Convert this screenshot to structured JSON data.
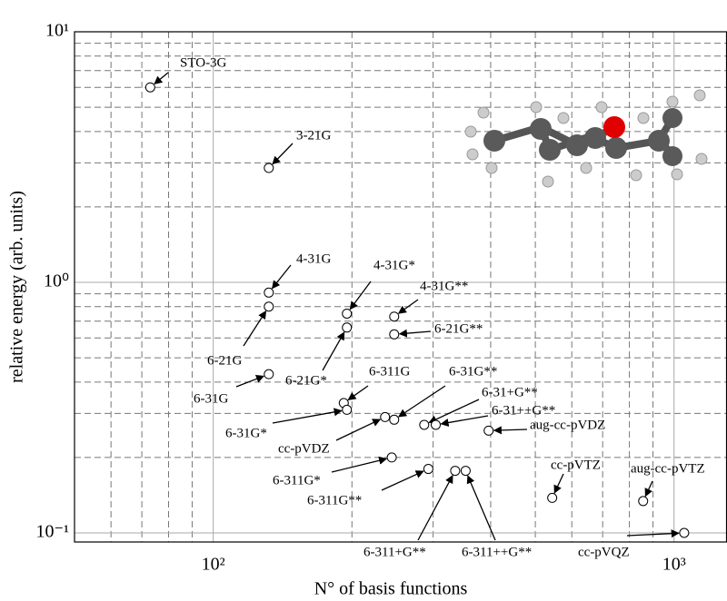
{
  "chart_data": {
    "type": "scatter",
    "xlabel": "N° of basis functions",
    "ylabel": "relative energy (arb. units)",
    "xscale": "log",
    "yscale": "log",
    "grid": true,
    "marker_color": "#000000",
    "xlim": [
      50,
      1300
    ],
    "ylim": [
      0.092,
      10
    ],
    "xticks": [
      {
        "value": 100,
        "label": "10²"
      },
      {
        "value": 1000,
        "label": "10³"
      }
    ],
    "yticks": [
      {
        "value": 0.1,
        "label": "10⁻¹"
      },
      {
        "value": 1,
        "label": "10⁰"
      },
      {
        "value": 10,
        "label": "10¹"
      }
    ],
    "minor_xticks": [
      60,
      70,
      80,
      90,
      200,
      300,
      400,
      500,
      600,
      700,
      800,
      900
    ],
    "minor_yticks": [
      0.2,
      0.3,
      0.4,
      0.5,
      0.6,
      0.7,
      0.8,
      0.9,
      2,
      3,
      4,
      5,
      6,
      7,
      8,
      9
    ],
    "point_labels": [
      "STO-3G",
      "3-21G",
      "4-31G",
      "6-21G",
      "6-31G",
      "4-31G*",
      "6-21G*",
      "6-311G",
      "6-31G*",
      "4-31G**",
      "6-21G**",
      "cc-pVDZ",
      "6-31G**",
      "6-31+G**",
      "6-31++G**",
      "aug-cc-pVDZ",
      "6-311G*",
      "6-311G**",
      "6-311+G**",
      "6-311++G**",
      "cc-pVTZ",
      "aug-cc-pVTZ",
      "cc-pVQZ"
    ],
    "x": [
      73,
      132,
      132,
      132,
      132,
      195,
      195,
      192,
      195,
      247,
      247,
      236,
      247,
      287,
      304,
      396,
      244,
      293,
      335,
      353,
      544,
      857,
      1052
    ],
    "values": [
      6.0,
      2.86,
      0.91,
      0.8,
      0.43,
      0.75,
      0.66,
      0.33,
      0.31,
      0.73,
      0.62,
      0.29,
      0.283,
      0.27,
      0.27,
      0.256,
      0.2,
      0.18,
      0.177,
      0.177,
      0.138,
      0.134,
      0.1
    ]
  }
}
